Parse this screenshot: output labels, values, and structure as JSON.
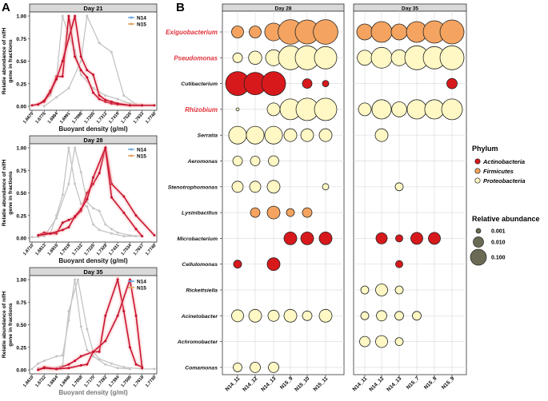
{
  "panel_labels": {
    "a": "A",
    "b": "B"
  },
  "colors": {
    "n14_line": "#c4c4c4",
    "n15_line": "#c8102e",
    "legend_n14": "#6fa8dc",
    "legend_n15": "#e0a060",
    "actinobacteria": "#d7191c",
    "firmicutes": "#f4a460",
    "proteobacteria": "#fff8c4",
    "highlight_taxon": "#e0303a",
    "size_legend": "#6b6b55"
  },
  "chart_data": [
    {
      "type": "line",
      "strip": "Day 21",
      "xlabel": "Buoyant density (g/ml)",
      "ylabel_line1": "Relatie abundance of nifH",
      "ylabel_line2": "gene in fractions",
      "xticks": [
        "1.6670",
        "1.6776",
        "1.6884",
        "1.6991",
        "1.7098",
        "1.7205",
        "1.7312",
        "1.7419",
        "1.7526",
        "1.7633",
        "1.7740"
      ],
      "xlim": [
        1.667,
        1.774
      ],
      "ylim": [
        0,
        1
      ],
      "yticks": [
        "0.00",
        "0.25",
        "0.50",
        "0.75",
        "1.00"
      ],
      "legend": [
        "N14",
        "N15"
      ],
      "legend_placement": "top-right",
      "series": [
        {
          "group": "N14",
          "x": [
            1.6723,
            1.683,
            1.6884,
            1.6937,
            1.6991,
            1.7045,
            1.7098,
            1.7205,
            1.7312,
            1.7419,
            1.7526,
            1.7633
          ],
          "y": [
            0.02,
            0.12,
            0.3,
            1.0,
            0.78,
            0.62,
            0.35,
            0.2,
            0.12,
            0.08,
            0.03,
            0.01
          ]
        },
        {
          "group": "N14",
          "x": [
            1.6776,
            1.6884,
            1.6991,
            1.7098,
            1.7151,
            1.7258,
            1.7365,
            1.7472,
            1.758
          ],
          "y": [
            0.0,
            0.1,
            0.2,
            0.5,
            1.0,
            0.7,
            0.6,
            0.12,
            0.02
          ]
        },
        {
          "group": "N15",
          "x": [
            1.667,
            1.6723,
            1.6776,
            1.683,
            1.6884,
            1.6937,
            1.6991,
            1.7045,
            1.7098,
            1.7151,
            1.7205,
            1.7258,
            1.7312,
            1.7365,
            1.7419,
            1.7526,
            1.7633,
            1.774
          ],
          "y": [
            0.01,
            0.02,
            0.05,
            0.15,
            0.33,
            0.33,
            1.0,
            0.55,
            0.4,
            0.32,
            0.15,
            0.08,
            0.05,
            0.03,
            0.02,
            0.01,
            0.01,
            0.01
          ]
        },
        {
          "group": "N15",
          "x": [
            1.6723,
            1.6776,
            1.683,
            1.6884,
            1.6937,
            1.7045,
            1.7098,
            1.7151,
            1.7205,
            1.7258,
            1.7312,
            1.7365,
            1.7419,
            1.7526,
            1.7633
          ],
          "y": [
            0.02,
            0.06,
            0.17,
            0.3,
            0.5,
            1.0,
            0.55,
            0.4,
            0.35,
            0.12,
            0.07,
            0.05,
            0.03,
            0.01,
            0.01
          ]
        }
      ]
    },
    {
      "type": "line",
      "strip": "Day 28",
      "xlabel": "Buoyant density (g/ml)",
      "ylabel_line1": "Relatie abundance of nifH",
      "ylabel_line2": "gene in fractions",
      "xticks": [
        "1.6710",
        "1.6813",
        "1.6916",
        "1.7019",
        "1.7122",
        "1.7225",
        "1.7328",
        "1.7431",
        "1.7534",
        "1.7637",
        "1.7740"
      ],
      "xlim": [
        1.671,
        1.774
      ],
      "ylim": [
        0,
        1
      ],
      "yticks": [
        "0.00",
        "0.25",
        "0.50",
        "0.75",
        "1.00"
      ],
      "legend": [
        "N14",
        "N15"
      ],
      "legend_placement": "top-right",
      "series": [
        {
          "group": "N14",
          "x": [
            1.671,
            1.6762,
            1.6865,
            1.6916,
            1.6968,
            1.7019,
            1.7071,
            1.7122,
            1.7174,
            1.7225,
            1.7277,
            1.738,
            1.7483,
            1.7585
          ],
          "y": [
            0.01,
            0.01,
            0.05,
            0.25,
            0.48,
            1.0,
            0.6,
            0.38,
            0.35,
            0.15,
            0.09,
            0.05,
            0.02,
            0.02
          ]
        },
        {
          "group": "N14",
          "x": [
            1.6813,
            1.6916,
            1.7019,
            1.7071,
            1.7122,
            1.7174,
            1.7225,
            1.7277,
            1.7328,
            1.738,
            1.7431,
            1.7534,
            1.7637
          ],
          "y": [
            0.02,
            0.22,
            0.6,
            1.0,
            0.73,
            0.4,
            0.33,
            0.3,
            0.15,
            0.1,
            0.06,
            0.03,
            0.02
          ]
        },
        {
          "group": "N15",
          "x": [
            1.6762,
            1.6813,
            1.6865,
            1.6916,
            1.6968,
            1.7019,
            1.7071,
            1.7122,
            1.7174,
            1.7225,
            1.7277,
            1.7328,
            1.738,
            1.7483,
            1.7585,
            1.774
          ],
          "y": [
            0.03,
            0.06,
            0.05,
            0.05,
            0.17,
            0.2,
            0.23,
            0.3,
            0.5,
            0.6,
            0.72,
            1.0,
            0.6,
            0.46,
            0.25,
            0.03
          ]
        },
        {
          "group": "N15",
          "x": [
            1.6762,
            1.6865,
            1.6968,
            1.7019,
            1.7071,
            1.7122,
            1.7174,
            1.7225,
            1.7328,
            1.738,
            1.7483,
            1.7585,
            1.7637
          ],
          "y": [
            0.03,
            0.05,
            0.09,
            0.12,
            0.24,
            0.32,
            0.43,
            0.67,
            1.0,
            0.45,
            0.28,
            0.1,
            0.02
          ]
        }
      ]
    },
    {
      "type": "line",
      "strip": "Day 35",
      "xlabel": "Buoyant density (g/ml)",
      "ylabel_line1": "Relatie abundance of nifH",
      "ylabel_line2": "gene in fractions",
      "xticks": [
        "1.6610",
        "1.6722",
        "1.6834",
        "1.6946",
        "1.7058",
        "1.7170",
        "1.7282",
        "1.7394",
        "1.7506",
        "1.7618",
        "1.7730"
      ],
      "xlim": [
        1.661,
        1.773
      ],
      "ylim": [
        0,
        1
      ],
      "yticks": [
        "0.00",
        "0.25",
        "0.50",
        "0.75",
        "1.00"
      ],
      "legend": [
        "N14",
        "N15"
      ],
      "legend_placement": "top-right",
      "series": [
        {
          "group": "N14",
          "x": [
            1.661,
            1.6666,
            1.6722,
            1.6834,
            1.689,
            1.6946,
            1.7002,
            1.7058,
            1.7114,
            1.717,
            1.7282,
            1.7394,
            1.7506
          ],
          "y": [
            0.01,
            0.07,
            0.1,
            0.15,
            0.16,
            0.55,
            1.0,
            0.48,
            0.22,
            0.15,
            0.06,
            0.02,
            0.01
          ]
        },
        {
          "group": "N14",
          "x": [
            1.6666,
            1.6778,
            1.689,
            1.6946,
            1.703,
            1.7114,
            1.717,
            1.7226,
            1.7338,
            1.745,
            1.7618,
            1.773
          ],
          "y": [
            0.02,
            0.01,
            0.05,
            0.65,
            1.0,
            0.45,
            0.2,
            0.12,
            0.07,
            0.03,
            0.01,
            0.01
          ]
        },
        {
          "group": "N15",
          "x": [
            1.6666,
            1.6722,
            1.6834,
            1.6946,
            1.7002,
            1.7058,
            1.717,
            1.7226,
            1.7282,
            1.7394,
            1.745,
            1.7506,
            1.7562,
            1.7618
          ],
          "y": [
            0.0,
            0.03,
            0.01,
            0.06,
            0.1,
            0.15,
            0.2,
            0.2,
            0.6,
            1.0,
            0.65,
            0.25,
            0.06,
            0.03
          ]
        },
        {
          "group": "N15",
          "x": [
            1.6666,
            1.6722,
            1.6834,
            1.6946,
            1.7058,
            1.7114,
            1.717,
            1.7282,
            1.7394,
            1.7506,
            1.7562,
            1.7618
          ],
          "y": [
            0.0,
            0.02,
            0.01,
            0.02,
            0.05,
            0.06,
            0.2,
            0.32,
            0.6,
            1.0,
            0.6,
            0.02
          ]
        }
      ]
    },
    {
      "type": "scatter",
      "subtype": "bubble",
      "taxa": [
        {
          "name": "Exiguobacterium",
          "phylum": "Firmicutes",
          "highlight": true
        },
        {
          "name": "Pseudomonas",
          "phylum": "Proteobacteria",
          "highlight": true
        },
        {
          "name": "Cutibacterium",
          "phylum": "Actinobacteria",
          "highlight": false
        },
        {
          "name": "Rhizobium",
          "phylum": "Proteobacteria",
          "highlight": true
        },
        {
          "name": "Serratia",
          "phylum": "Proteobacteria",
          "highlight": false
        },
        {
          "name": "Aeromonas",
          "phylum": "Proteobacteria",
          "highlight": false
        },
        {
          "name": "Stenotrophomonas",
          "phylum": "Proteobacteria",
          "highlight": false
        },
        {
          "name": "Lysinibacillus",
          "phylum": "Firmicutes",
          "highlight": false
        },
        {
          "name": "Microbacterium",
          "phylum": "Actinobacteria",
          "highlight": false
        },
        {
          "name": "Cellulomonas",
          "phylum": "Actinobacteria",
          "highlight": false
        },
        {
          "name": "Rickettsiella",
          "phylum": "Proteobacteria",
          "highlight": false
        },
        {
          "name": "Acinetobacter",
          "phylum": "Proteobacteria",
          "highlight": false
        },
        {
          "name": "Achromobacter",
          "phylum": "Proteobacteria",
          "highlight": false
        },
        {
          "name": "Comamonas",
          "phylum": "Proteobacteria",
          "highlight": false
        }
      ],
      "panels": [
        {
          "strip": "Day 28",
          "samples": [
            "N14_11",
            "N14_12",
            "N14_13",
            "N15_9",
            "N15_10",
            "N15_11"
          ],
          "abundance": [
            [
              0.019,
              0.019,
              0.15,
              0.8,
              0.68,
              0.8
            ],
            [
              0.0072,
              0.033,
              0.1,
              0.68,
              0.68,
              0.46
            ],
            [
              0.68,
              0.46,
              0.68,
              null,
              0.0072,
              0.0019
            ],
            [
              0.0005,
              null,
              0.027,
              0.32,
              0.46,
              0.46
            ],
            [
              0.15,
              0.15,
              0.15,
              0.027,
              0.027,
              0.027
            ],
            [
              0.0072,
              0.0072,
              0.01,
              null,
              null,
              null
            ],
            [
              0.014,
              0.014,
              0.027,
              null,
              null,
              0.0019
            ],
            [
              null,
              0.0072,
              0.027,
              0.0037,
              0.0072,
              null
            ],
            [
              null,
              null,
              null,
              0.027,
              0.027,
              0.027
            ],
            [
              0.0037,
              null,
              0.027,
              null,
              null,
              null
            ],
            [
              null,
              null,
              null,
              null,
              null,
              null
            ],
            [
              0.019,
              0.027,
              0.014,
              0.027,
              0.0072,
              0.027
            ],
            [
              null,
              null,
              null,
              null,
              null,
              null
            ],
            [
              0.0052,
              0.01,
              0.01,
              null,
              null,
              null
            ]
          ]
        },
        {
          "strip": "Day 35",
          "samples": [
            "N14_11",
            "N14_12",
            "N14_13",
            "N15_7",
            "N15_8",
            "N15_9"
          ],
          "abundance": [
            [
              0.1,
              0.32,
              0.1,
              0.32,
              0.46,
              0.68
            ],
            [
              0.068,
              0.32,
              0.1,
              0.68,
              0.46,
              0.68
            ],
            [
              null,
              null,
              null,
              null,
              null,
              0.01
            ],
            [
              0.027,
              0.22,
              0.068,
              0.22,
              0.22,
              0.32
            ],
            [
              null,
              0.027,
              null,
              null,
              null,
              null
            ],
            [
              null,
              null,
              null,
              null,
              null,
              null
            ],
            [
              null,
              null,
              0.0037,
              null,
              null,
              null
            ],
            [
              null,
              null,
              null,
              null,
              null,
              null
            ],
            [
              null,
              0.014,
              0.0027,
              0.019,
              0.019,
              null
            ],
            [
              null,
              null,
              0.0027,
              null,
              null,
              null
            ],
            [
              0.0037,
              0.019,
              0.0037,
              null,
              null,
              null
            ],
            [
              0.0037,
              0.01,
              0.0052,
              0.0052,
              null,
              null
            ],
            [
              0.01,
              0.019,
              0.0037,
              null,
              null,
              null
            ],
            [
              null,
              null,
              null,
              null,
              null,
              null
            ]
          ]
        }
      ],
      "legend_phylum": {
        "title": "Phylum",
        "items": [
          "Actinobacteria",
          "Firmicutes",
          "Proteobacteria"
        ]
      },
      "legend_size": {
        "title": "Relative abundance",
        "items": [
          {
            "label": "0.001",
            "value": 0.001
          },
          {
            "label": "0.010",
            "value": 0.01
          },
          {
            "label": "0.100",
            "value": 0.1
          }
        ]
      }
    }
  ]
}
